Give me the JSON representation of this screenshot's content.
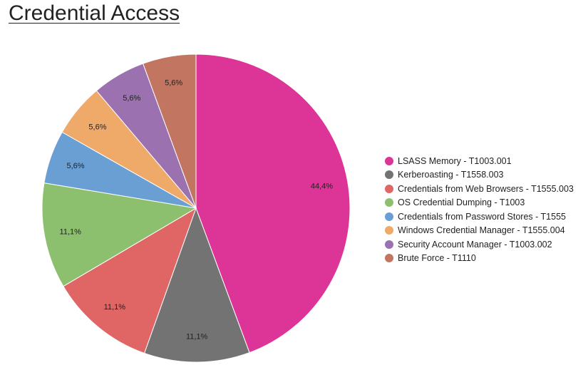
{
  "page": {
    "title": "Credential Access"
  },
  "chart_data": {
    "type": "pie",
    "title": "Credential Access",
    "legend_position": "right",
    "slices": [
      {
        "name": "LSASS Memory - T1003.001",
        "value": 44.4,
        "label": "44,4%",
        "color": "#dd3497"
      },
      {
        "name": "Kerberoasting - T1558.003",
        "value": 11.1,
        "label": "11,1%",
        "color": "#737373"
      },
      {
        "name": "Credentials from Web Browsers - T1555.003",
        "value": 11.1,
        "label": "11,1%",
        "color": "#e06666"
      },
      {
        "name": "OS Credential Dumping - T1003",
        "value": 11.1,
        "label": "11,1%",
        "color": "#8cc06f"
      },
      {
        "name": "Credentials from Password Stores - T1555",
        "value": 5.6,
        "label": "5,6%",
        "color": "#6a9fd4"
      },
      {
        "name": "Windows Credential Manager - T1555.004",
        "value": 5.6,
        "label": "5,6%",
        "color": "#efaa6a"
      },
      {
        "name": "Security Account Manager - T1003.002",
        "value": 5.6,
        "label": "5,6%",
        "color": "#9c71b0"
      },
      {
        "name": "Brute Force - T1110",
        "value": 5.6,
        "label": "5,6%",
        "color": "#c27561"
      }
    ]
  }
}
